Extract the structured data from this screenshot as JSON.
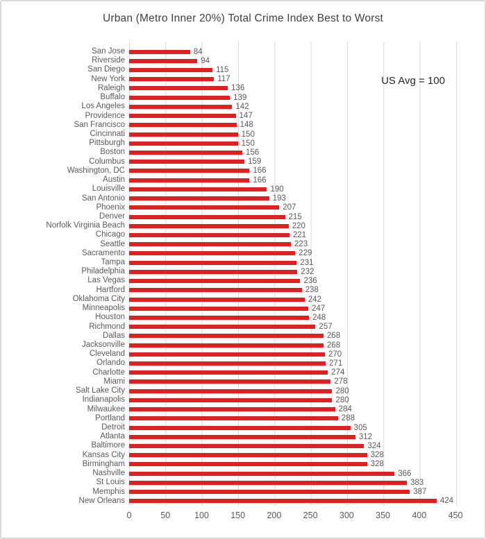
{
  "chart": {
    "title": "Urban (Metro Inner 20%) Total Crime Index Best to Worst",
    "annotation": "US Avg = 100"
  },
  "chart_data": {
    "type": "bar",
    "orientation": "horizontal",
    "title": "Urban (Metro Inner 20%) Total Crime Index Best to Worst",
    "annotation": "US Avg = 100",
    "categories": [
      "San Jose",
      "Riverside",
      "San Diego",
      "New York",
      "Raleigh",
      "Buffalo",
      "Los Angeles",
      "Providence",
      "San Francisco",
      "Cincinnati",
      "Pittsburgh",
      "Boston",
      "Columbus",
      "Washington, DC",
      "Austin",
      "Louisville",
      "San Antonio",
      "Phoenix",
      "Denver",
      "Norfolk Virginia Beach",
      "Chicago",
      "Seattle",
      "Sacramento",
      "Tampa",
      "Philadelphia",
      "Las Vegas",
      "Hartford",
      "Oklahoma City",
      "Minneapolis",
      "Houston",
      "Richmond",
      "Dallas",
      "Jacksonville",
      "Cleveland",
      "Orlando",
      "Charlotte",
      "Miami",
      "Salt Lake City",
      "Indianapolis",
      "Milwaukee",
      "Portland",
      "Detroit",
      "Atlanta",
      "Baltimore",
      "Kansas City",
      "Birmingham",
      "Nashville",
      "St Louis",
      "Memphis",
      "New Orleans"
    ],
    "values": [
      84,
      94,
      115,
      117,
      136,
      139,
      142,
      147,
      148,
      150,
      150,
      156,
      159,
      166,
      166,
      190,
      193,
      207,
      215,
      220,
      221,
      223,
      229,
      231,
      232,
      236,
      238,
      242,
      247,
      248,
      257,
      268,
      268,
      270,
      271,
      274,
      278,
      280,
      280,
      284,
      288,
      305,
      312,
      324,
      328,
      328,
      366,
      383,
      387,
      424
    ],
    "xlabel": "",
    "ylabel": "",
    "xlim": [
      0,
      450
    ],
    "xticks": [
      0,
      50,
      100,
      150,
      200,
      250,
      300,
      350,
      400,
      450
    ],
    "grid": true,
    "legend": false,
    "bar_color": "#e02020",
    "label_color": "#595959",
    "sort_order": "best to worst (ascending)"
  }
}
